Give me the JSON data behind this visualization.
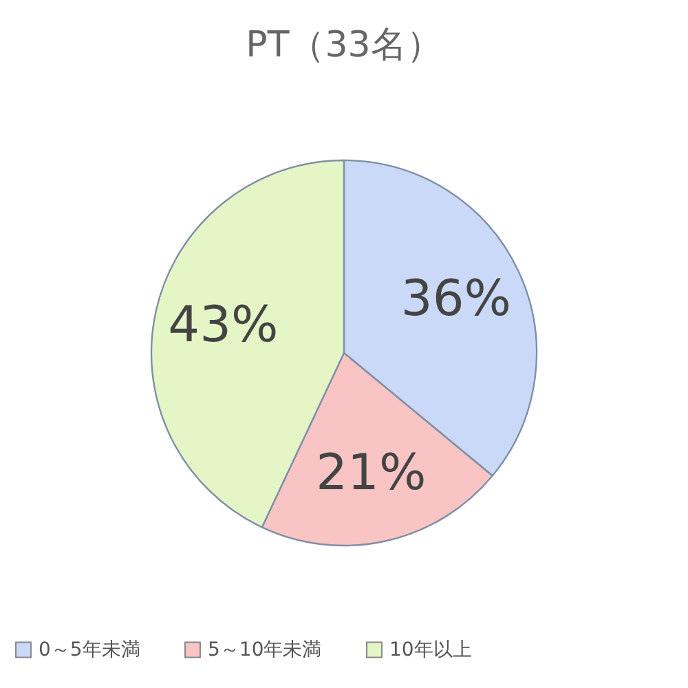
{
  "chart_data": {
    "type": "pie",
    "title": "PT（33名）",
    "categories": [
      "0～5年未満",
      "5～10年未満",
      "10年以上"
    ],
    "values": [
      36,
      21,
      43
    ],
    "colors": [
      "#c9d9f7",
      "#f8c4c4",
      "#e4f6c6"
    ],
    "value_labels": [
      "36%",
      "21%",
      "43%"
    ],
    "legend": "bottom"
  }
}
